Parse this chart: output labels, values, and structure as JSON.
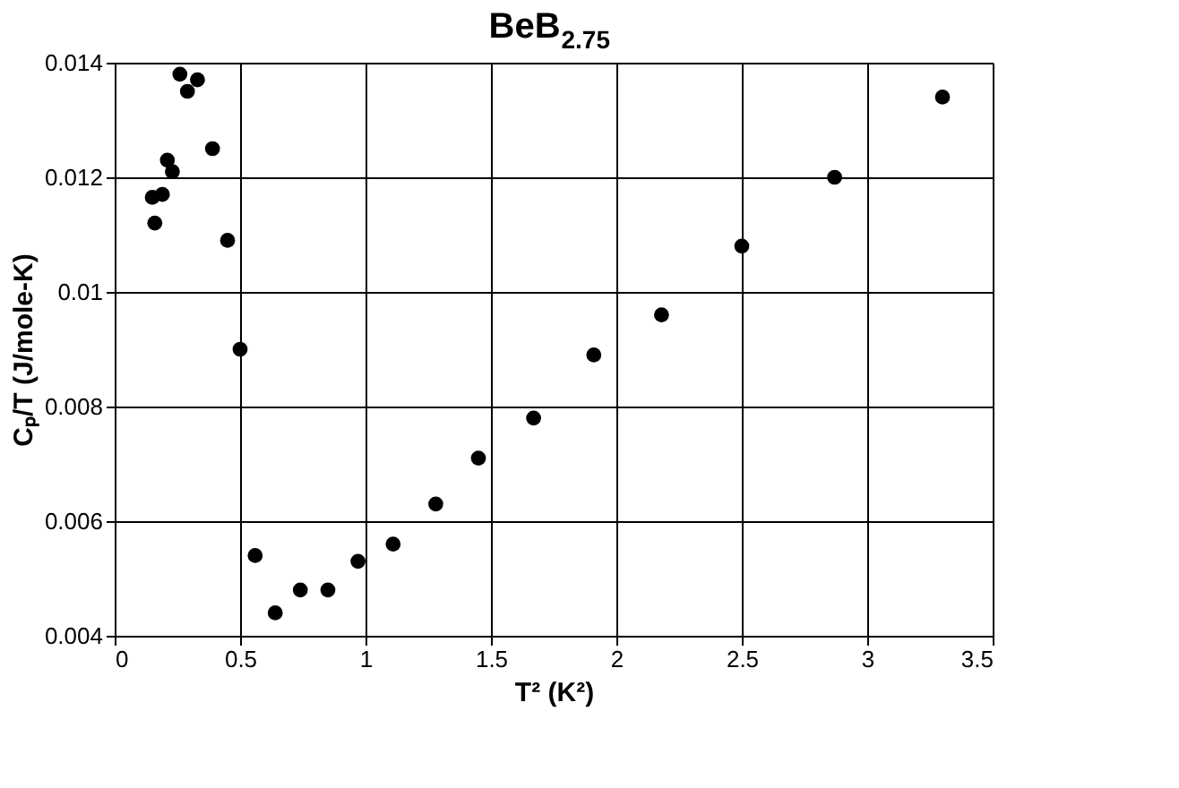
{
  "chart_data": {
    "type": "scatter",
    "title": "BeB$_{2.75}$",
    "xlabel": "T² (K²)",
    "ylabel": "Cₚ/T (J/mole-K)",
    "x": [
      0.15,
      0.16,
      0.19,
      0.21,
      0.23,
      0.26,
      0.29,
      0.33,
      0.39,
      0.45,
      0.5,
      0.56,
      0.64,
      0.74,
      0.85,
      0.97,
      1.11,
      1.28,
      1.45,
      1.67,
      1.91,
      2.18,
      2.5,
      2.87,
      3.3
    ],
    "series": [
      {
        "color": "#000000",
        "values": [
          0.01165,
          0.0112,
          0.0117,
          0.0123,
          0.0121,
          0.0138,
          0.0135,
          0.0137,
          0.0125,
          0.0109,
          0.009,
          0.0054,
          0.0044,
          0.0048,
          0.0048,
          0.0053,
          0.0056,
          0.0063,
          0.0071,
          0.0078,
          0.0089,
          0.0096,
          0.0108,
          0.012,
          0.0134
        ]
      }
    ],
    "xlim": [
      0,
      3.5
    ],
    "xticks": [
      0,
      0.5,
      1,
      1.5,
      2,
      2.5,
      3,
      3.5
    ],
    "ylim": [
      0.004,
      0.014
    ],
    "yticks": [
      0.004,
      0.006,
      0.008,
      0.01,
      0.012,
      0.014
    ],
    "grid": true,
    "marker": "circle"
  }
}
